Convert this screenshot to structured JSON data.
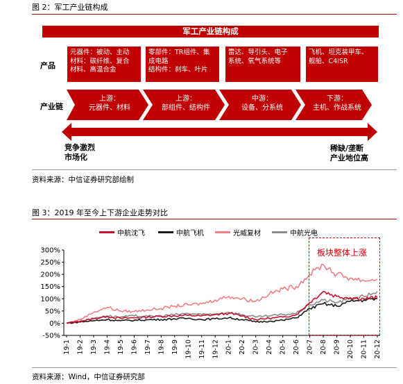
{
  "figure2": {
    "caption": "图 2：军工产业链构成",
    "banner": "军工产业链构成",
    "products_label": "产品",
    "chain_label": "产业链",
    "products": [
      {
        "lines": [
          "元器件：被动、主动",
          "材料：碳纤维、复合",
          "材料、高温合金"
        ]
      },
      {
        "lines": [
          "零部件：TR组件、集",
          "成电路",
          "结构件：刹车、叶片"
        ]
      },
      {
        "lines": [
          "雷达、导引头、电子",
          "系统、氧气系统等"
        ]
      },
      {
        "lines": [
          "飞机、坦克装甲车、",
          "舰船、C4ISR"
        ]
      }
    ],
    "chain": [
      {
        "title": "上游：",
        "desc": "元器件、材料"
      },
      {
        "title": "上游：",
        "desc": "部组件、结构件"
      },
      {
        "title": "中游：",
        "desc": "设备、分系统"
      },
      {
        "title": "下游：",
        "desc": "主机、作战系统"
      }
    ],
    "left_note": [
      "竞争激烈",
      "市场化"
    ],
    "right_note": [
      "稀缺/垄断",
      "产业地位高"
    ],
    "source": "资料来源：中信证券研究部绘制"
  },
  "figure3": {
    "caption": "图 3：2019 年至今上下游企业走势对比",
    "annotation": "板块整体上涨",
    "source": "资料来源：Wind，中信证券研究部"
  },
  "colors": {
    "brand_red": "#c00000",
    "series": [
      "#c8102e",
      "#1a1a1a",
      "#f07f86",
      "#8c8c8c"
    ]
  },
  "chart_data": {
    "type": "line",
    "x": [
      "19-1",
      "19-2",
      "19-3",
      "19-4",
      "19-5",
      "19-6",
      "19-7",
      "19-8",
      "19-9",
      "19-10",
      "19-11",
      "19-12",
      "20-1",
      "20-2",
      "20-3",
      "20-4",
      "20-5",
      "20-6",
      "20-7",
      "20-8",
      "20-9",
      "20-10",
      "20-11",
      "20-12"
    ],
    "ylim": [
      -50,
      300
    ],
    "yticks": [
      "-50%",
      "0%",
      "50%",
      "100%",
      "150%",
      "200%",
      "250%",
      "300%"
    ],
    "yticks_values": [
      -50,
      0,
      50,
      100,
      150,
      200,
      250,
      300
    ],
    "grid": false,
    "legend_position": "top",
    "series": [
      {
        "name": "中航沈飞",
        "values": [
          0,
          8,
          18,
          28,
          20,
          22,
          25,
          28,
          30,
          32,
          30,
          35,
          40,
          30,
          15,
          20,
          25,
          35,
          85,
          130,
          110,
          105,
          100,
          105
        ]
      },
      {
        "name": "中航飞机",
        "values": [
          0,
          5,
          10,
          15,
          10,
          12,
          14,
          15,
          18,
          20,
          15,
          18,
          22,
          15,
          5,
          8,
          12,
          22,
          60,
          80,
          70,
          90,
          95,
          100
        ]
      },
      {
        "name": "光威复材",
        "values": [
          0,
          15,
          45,
          65,
          50,
          48,
          55,
          60,
          70,
          75,
          80,
          95,
          110,
          100,
          90,
          120,
          140,
          150,
          200,
          240,
          200,
          185,
          175,
          180
        ]
      },
      {
        "name": "中航光电",
        "values": [
          0,
          8,
          20,
          30,
          25,
          30,
          28,
          30,
          35,
          40,
          35,
          38,
          45,
          35,
          25,
          30,
          35,
          40,
          75,
          95,
          85,
          100,
          110,
          130
        ]
      }
    ]
  }
}
